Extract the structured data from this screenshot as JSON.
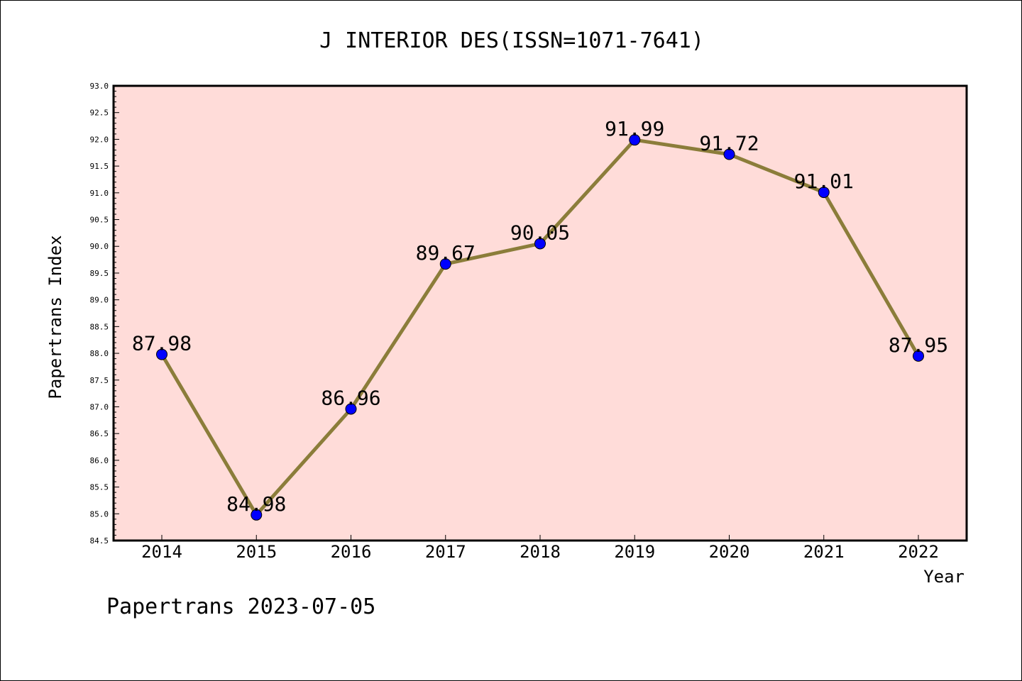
{
  "chart_data": {
    "type": "line",
    "title": "J INTERIOR DES(ISSN=1071-7641)",
    "xlabel": "Year",
    "ylabel": "Papertrans Index",
    "categories": [
      "2014",
      "2015",
      "2016",
      "2017",
      "2018",
      "2019",
      "2020",
      "2021",
      "2022"
    ],
    "values": [
      87.98,
      84.98,
      86.96,
      89.67,
      90.05,
      91.99,
      91.72,
      91.01,
      87.95
    ],
    "data_labels": [
      "87.98",
      "84.98",
      "86.96",
      "89.67",
      "90.05",
      "91.99",
      "91.72",
      "91.01",
      "87.95"
    ],
    "ylim": [
      84.5,
      93.0
    ],
    "yticks": [
      "84.5",
      "85.0",
      "85.5",
      "86.0",
      "86.5",
      "87.0",
      "87.5",
      "88.0",
      "88.5",
      "89.0",
      "89.5",
      "90.0",
      "90.5",
      "91.0",
      "91.5",
      "92.0",
      "92.5",
      "93.0"
    ],
    "grid": false,
    "colors": {
      "plot_background": "#ffdcd9",
      "line": "#8b7d3a",
      "marker": "#0000ff"
    }
  },
  "footer": "Papertrans 2023-07-05"
}
